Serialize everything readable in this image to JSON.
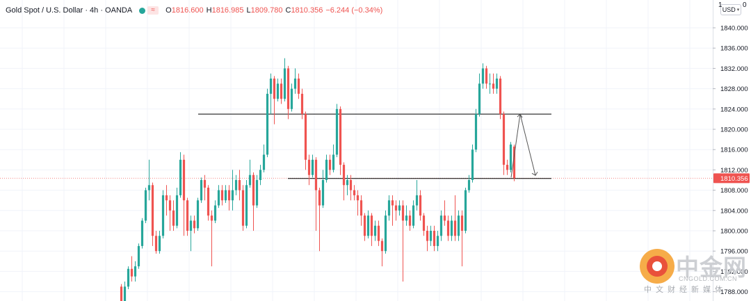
{
  "legend": {
    "symbol": "Gold Spot / U.S. Dollar · 4h · OANDA",
    "indicator_icon": "wave-icon",
    "open_label": "O",
    "open": "1816.600",
    "high_label": "H",
    "high": "1816.985",
    "low_label": "L",
    "low": "1809.780",
    "close_label": "C",
    "close": "1810.356",
    "change": "−6.244 (−0.34%)"
  },
  "currency": {
    "label": "USD",
    "arrow": "▾"
  },
  "top_clips": {
    "left": "1",
    "right": "0"
  },
  "colors": {
    "up": "#26a69a",
    "down": "#ef5350",
    "line": "#000000",
    "arrow": "#555555",
    "axis_text": "#131722"
  },
  "watermark": {
    "brand": "中金网",
    "site": "CNGOLD.COM.CN",
    "slogan": "中文财经新媒体"
  },
  "chart_data": {
    "type": "candlestick",
    "title": "Gold Spot / U.S. Dollar · 4h · OANDA",
    "xlabel": "",
    "ylabel": "",
    "ylim": [
      1787.0,
      1842.5
    ],
    "yticks": [
      1788,
      1792,
      1796,
      1800,
      1804,
      1808,
      1812,
      1816,
      1820,
      1824,
      1828,
      1832,
      1836,
      1840
    ],
    "grid": true,
    "last_price": 1810.356,
    "last_price_label": "1810.356",
    "horizontal_lines": [
      1823.0,
      1810.3
    ],
    "candles": [
      [
        1789.0,
        1786.0,
        1789.5,
        1785.0
      ],
      [
        1786.0,
        1789.0,
        1790.0,
        1785.0
      ],
      [
        1789.0,
        1792.5,
        1793.0,
        1788.5
      ],
      [
        1792.5,
        1791.0,
        1795.0,
        1790.0
      ],
      [
        1791.0,
        1793.0,
        1794.0,
        1790.0
      ],
      [
        1793.0,
        1797.0,
        1797.5,
        1792.5
      ],
      [
        1797.0,
        1802.0,
        1802.5,
        1796.5
      ],
      [
        1802.0,
        1808.0,
        1808.5,
        1801.5
      ],
      [
        1808.0,
        1809.0,
        1814.0,
        1806.0
      ],
      [
        1809.0,
        1799.0,
        1809.5,
        1797.0
      ],
      [
        1799.0,
        1796.0,
        1800.0,
        1795.5
      ],
      [
        1796.0,
        1799.0,
        1800.0,
        1795.5
      ],
      [
        1799.0,
        1807.0,
        1808.0,
        1798.5
      ],
      [
        1807.0,
        1806.0,
        1809.0,
        1803.0
      ],
      [
        1806.0,
        1804.0,
        1807.0,
        1800.0
      ],
      [
        1804.0,
        1801.0,
        1806.0,
        1800.0
      ],
      [
        1801.0,
        1807.0,
        1808.5,
        1800.5
      ],
      [
        1807.0,
        1814.0,
        1815.5,
        1806.5
      ],
      [
        1814.0,
        1806.0,
        1815.0,
        1799.0
      ],
      [
        1806.0,
        1800.0,
        1806.5,
        1799.0
      ],
      [
        1800.0,
        1802.0,
        1803.0,
        1796.0
      ],
      [
        1802.0,
        1800.5,
        1803.0,
        1799.5
      ],
      [
        1800.5,
        1806.0,
        1806.5,
        1800.0
      ],
      [
        1806.0,
        1810.0,
        1810.5,
        1805.5
      ],
      [
        1810.0,
        1808.5,
        1811.0,
        1806.0
      ],
      [
        1808.5,
        1803.0,
        1809.0,
        1802.0
      ],
      [
        1803.0,
        1802.0,
        1804.0,
        1793.0
      ],
      [
        1802.0,
        1805.0,
        1806.0,
        1801.5
      ],
      [
        1805.0,
        1808.0,
        1809.0,
        1804.5
      ],
      [
        1808.0,
        1806.0,
        1809.0,
        1805.0
      ],
      [
        1806.0,
        1808.0,
        1809.0,
        1805.5
      ],
      [
        1808.0,
        1806.0,
        1809.0,
        1804.0
      ],
      [
        1806.0,
        1808.0,
        1812.0,
        1804.0
      ],
      [
        1808.0,
        1810.0,
        1811.0,
        1807.0
      ],
      [
        1810.0,
        1808.0,
        1812.0,
        1806.0
      ],
      [
        1808.0,
        1801.0,
        1809.0,
        1800.0
      ],
      [
        1801.0,
        1809.0,
        1810.0,
        1800.5
      ],
      [
        1809.0,
        1811.0,
        1814.0,
        1808.5
      ],
      [
        1811.0,
        1805.0,
        1811.5,
        1800.0
      ],
      [
        1805.0,
        1810.0,
        1811.0,
        1804.5
      ],
      [
        1810.0,
        1812.0,
        1813.0,
        1809.0
      ],
      [
        1812.0,
        1815.0,
        1817.0,
        1811.5
      ],
      [
        1815.0,
        1827.0,
        1828.0,
        1814.5
      ],
      [
        1827.0,
        1830.0,
        1831.0,
        1823.0
      ],
      [
        1830.0,
        1826.0,
        1830.5,
        1821.0
      ],
      [
        1826.0,
        1829.0,
        1830.0,
        1825.5
      ],
      [
        1829.0,
        1826.0,
        1830.0,
        1825.0
      ],
      [
        1826.0,
        1832.0,
        1834.0,
        1825.5
      ],
      [
        1832.0,
        1824.0,
        1832.5,
        1822.0
      ],
      [
        1824.0,
        1828.0,
        1829.0,
        1823.5
      ],
      [
        1828.0,
        1830.0,
        1832.0,
        1827.0
      ],
      [
        1830.0,
        1827.0,
        1831.0,
        1826.0
      ],
      [
        1827.0,
        1823.0,
        1828.0,
        1822.0
      ],
      [
        1823.0,
        1814.0,
        1823.5,
        1812.0
      ],
      [
        1814.0,
        1811.0,
        1815.0,
        1809.0
      ],
      [
        1811.0,
        1814.0,
        1815.0,
        1810.5
      ],
      [
        1814.0,
        1808.0,
        1814.5,
        1800.0
      ],
      [
        1808.0,
        1805.0,
        1808.5,
        1796.0
      ],
      [
        1805.0,
        1810.0,
        1812.0,
        1804.5
      ],
      [
        1810.0,
        1814.0,
        1815.0,
        1809.5
      ],
      [
        1814.0,
        1812.0,
        1815.0,
        1811.0
      ],
      [
        1812.0,
        1815.0,
        1817.0,
        1811.5
      ],
      [
        1815.0,
        1824.0,
        1825.0,
        1814.5
      ],
      [
        1824.0,
        1813.0,
        1824.5,
        1811.0
      ],
      [
        1813.0,
        1809.0,
        1813.5,
        1806.0
      ],
      [
        1809.0,
        1810.0,
        1811.0,
        1807.0
      ],
      [
        1810.0,
        1808.0,
        1811.0,
        1806.0
      ],
      [
        1808.0,
        1807.0,
        1809.0,
        1806.0
      ],
      [
        1807.0,
        1806.0,
        1808.0,
        1803.0
      ],
      [
        1806.0,
        1803.0,
        1807.0,
        1801.0
      ],
      [
        1803.0,
        1799.0,
        1803.5,
        1798.0
      ],
      [
        1799.0,
        1803.0,
        1804.0,
        1798.5
      ],
      [
        1803.0,
        1799.0,
        1803.5,
        1797.0
      ],
      [
        1799.0,
        1801.0,
        1802.0,
        1798.0
      ],
      [
        1801.0,
        1798.0,
        1802.0,
        1797.0
      ],
      [
        1798.0,
        1796.0,
        1798.5,
        1793.0
      ],
      [
        1796.0,
        1803.0,
        1804.0,
        1795.5
      ],
      [
        1803.0,
        1806.0,
        1807.0,
        1802.0
      ],
      [
        1806.0,
        1805.0,
        1807.0,
        1801.0
      ],
      [
        1805.0,
        1804.0,
        1806.0,
        1802.0
      ],
      [
        1804.0,
        1805.0,
        1806.0,
        1803.0
      ],
      [
        1805.0,
        1802.0,
        1806.0,
        1790.0
      ],
      [
        1802.0,
        1803.0,
        1805.0,
        1801.0
      ],
      [
        1803.0,
        1801.0,
        1804.0,
        1800.0
      ],
      [
        1801.0,
        1805.0,
        1806.0,
        1800.5
      ],
      [
        1805.0,
        1807.0,
        1810.0,
        1804.0
      ],
      [
        1807.0,
        1803.0,
        1808.0,
        1802.0
      ],
      [
        1803.0,
        1800.0,
        1803.5,
        1799.0
      ],
      [
        1800.0,
        1798.0,
        1801.0,
        1796.0
      ],
      [
        1798.0,
        1800.0,
        1801.0,
        1797.0
      ],
      [
        1800.0,
        1797.0,
        1801.0,
        1796.0
      ],
      [
        1797.0,
        1799.0,
        1800.0,
        1796.0
      ],
      [
        1799.0,
        1803.0,
        1804.0,
        1798.0
      ],
      [
        1803.0,
        1802.0,
        1806.0,
        1801.0
      ],
      [
        1802.0,
        1799.0,
        1803.0,
        1798.0
      ],
      [
        1799.0,
        1802.0,
        1803.0,
        1798.0
      ],
      [
        1802.0,
        1799.0,
        1807.0,
        1798.0
      ],
      [
        1799.0,
        1803.0,
        1804.0,
        1798.0
      ],
      [
        1803.0,
        1800.0,
        1804.0,
        1793.0
      ],
      [
        1800.0,
        1808.0,
        1808.5,
        1799.5
      ],
      [
        1808.0,
        1810.0,
        1811.0,
        1807.5
      ],
      [
        1810.0,
        1816.0,
        1817.0,
        1809.5
      ],
      [
        1816.0,
        1823.0,
        1824.0,
        1815.5
      ],
      [
        1823.0,
        1829.0,
        1831.0,
        1822.5
      ],
      [
        1829.0,
        1832.0,
        1833.0,
        1828.0
      ],
      [
        1832.0,
        1829.0,
        1832.5,
        1828.0
      ],
      [
        1829.0,
        1829.0,
        1831.0,
        1827.0
      ],
      [
        1829.0,
        1828.0,
        1831.0,
        1827.0
      ],
      [
        1828.0,
        1830.0,
        1831.0,
        1827.0
      ],
      [
        1830.0,
        1823.0,
        1830.5,
        1822.0
      ],
      [
        1823.0,
        1813.0,
        1823.5,
        1811.0
      ],
      [
        1813.0,
        1812.0,
        1814.0,
        1811.0
      ],
      [
        1812.0,
        1817.0,
        1817.5,
        1811.5
      ],
      [
        1816.6,
        1810.356,
        1816.985,
        1809.78
      ]
    ],
    "candle_order": "open, close, high, low",
    "projection_arrow": [
      1810.5,
      1823.0,
      1810.5
    ]
  }
}
